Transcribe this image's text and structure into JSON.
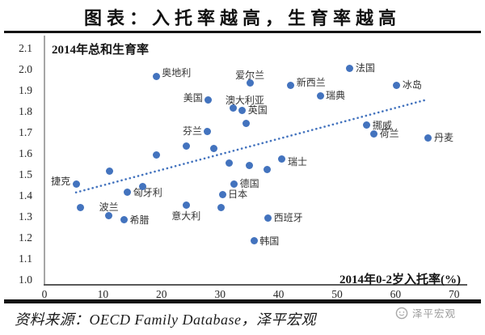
{
  "header": {
    "title": "图表：入托率越高，生育率越高"
  },
  "chart_data": {
    "type": "scatter",
    "title": "图表：入托率越高，生育率越高",
    "ylabel": "2014年总和生育率",
    "xlabel": "2014年0-2岁入托率(%)",
    "xlim": [
      0,
      72
    ],
    "ylim": [
      1.0,
      2.1
    ],
    "x_ticks": [
      0,
      10,
      20,
      30,
      40,
      50,
      60,
      70
    ],
    "y_ticks": [
      1.0,
      1.1,
      1.2,
      1.3,
      1.4,
      1.5,
      1.6,
      1.7,
      1.8,
      1.9,
      2.0,
      2.1
    ],
    "grid": false,
    "legend": "none",
    "point_color": "#4373be",
    "trendline": {
      "style": "dotted",
      "x1": 5.4,
      "y1": 1.42,
      "x2": 65.2,
      "y2": 1.86
    },
    "points": [
      {
        "label": "捷克",
        "x": 5.4,
        "y": 1.46,
        "side": "left",
        "dy": -3
      },
      {
        "label": "",
        "x": 6.1,
        "y": 1.35
      },
      {
        "label": "",
        "x": 11.1,
        "y": 1.52
      },
      {
        "label": "波兰",
        "x": 11.0,
        "y": 1.31,
        "side": "above"
      },
      {
        "label": "希腊",
        "x": 13.6,
        "y": 1.29,
        "side": "right"
      },
      {
        "label": "匈牙利",
        "x": 14.2,
        "y": 1.42,
        "side": "right"
      },
      {
        "label": "",
        "x": 16.8,
        "y": 1.45
      },
      {
        "label": "奥地利",
        "x": 19.1,
        "y": 1.97,
        "side": "right",
        "dy": -5
      },
      {
        "label": "",
        "x": 19.1,
        "y": 1.6
      },
      {
        "label": "",
        "x": 24.3,
        "y": 1.64
      },
      {
        "label": "意大利",
        "x": 24.2,
        "y": 1.36,
        "side": "below"
      },
      {
        "label": "美国",
        "x": 28.0,
        "y": 1.86,
        "side": "left",
        "dy": -2
      },
      {
        "label": "芬兰",
        "x": 27.9,
        "y": 1.71,
        "side": "left"
      },
      {
        "label": "",
        "x": 29.0,
        "y": 1.63
      },
      {
        "label": "日本",
        "x": 30.4,
        "y": 1.41,
        "side": "right"
      },
      {
        "label": "",
        "x": 30.2,
        "y": 1.35
      },
      {
        "label": "德国",
        "x": 32.4,
        "y": 1.46,
        "side": "right"
      },
      {
        "label": "澳大利亚",
        "x": 32.3,
        "y": 1.82,
        "side": "above",
        "dx": 14
      },
      {
        "label": "英国",
        "x": 33.8,
        "y": 1.81,
        "side": "right"
      },
      {
        "label": "",
        "x": 34.5,
        "y": 1.75
      },
      {
        "label": "爱尔兰",
        "x": 35.1,
        "y": 1.94,
        "side": "above"
      },
      {
        "label": "",
        "x": 31.5,
        "y": 1.56
      },
      {
        "label": "",
        "x": 35.0,
        "y": 1.55
      },
      {
        "label": "",
        "x": 38.1,
        "y": 1.53
      },
      {
        "label": "瑞士",
        "x": 40.6,
        "y": 1.58,
        "side": "right",
        "dy": 4
      },
      {
        "label": "韩国",
        "x": 35.8,
        "y": 1.19,
        "side": "right"
      },
      {
        "label": "西班牙",
        "x": 38.2,
        "y": 1.3,
        "side": "right"
      },
      {
        "label": "新西兰",
        "x": 42.1,
        "y": 1.93,
        "side": "right",
        "dy": -3
      },
      {
        "label": "瑞典",
        "x": 47.1,
        "y": 1.88,
        "side": "right"
      },
      {
        "label": "法国",
        "x": 52.2,
        "y": 2.01,
        "side": "right"
      },
      {
        "label": "挪威",
        "x": 55.1,
        "y": 1.74,
        "side": "right"
      },
      {
        "label": "荷兰",
        "x": 56.3,
        "y": 1.7,
        "side": "right"
      },
      {
        "label": "冰岛",
        "x": 60.2,
        "y": 1.93,
        "side": "right"
      },
      {
        "label": "丹麦",
        "x": 65.6,
        "y": 1.68,
        "side": "right"
      }
    ]
  },
  "footer": {
    "source": "资料来源：OECD Family Database，泽平宏观",
    "watermark": "泽平宏观"
  },
  "icons": {
    "watermark_logo": "smiley-circle"
  }
}
